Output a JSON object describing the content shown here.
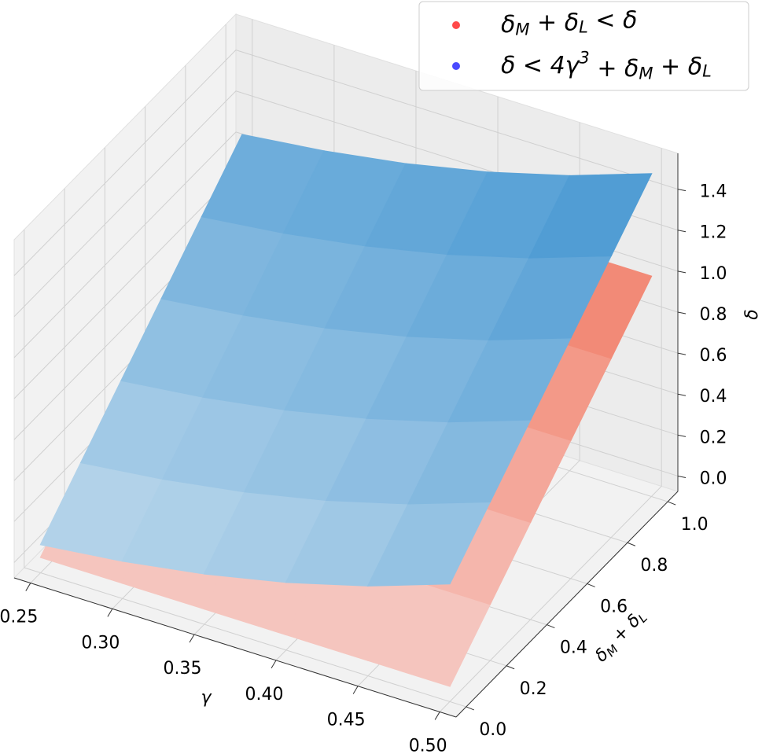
{
  "chart_data": {
    "type": "surface3d",
    "xlabel": "γ",
    "ylabel": "δ_M + δ_L",
    "zlabel": "δ",
    "x": [
      0.25,
      0.3,
      0.35,
      0.4,
      0.45,
      0.5
    ],
    "y": [
      0.0,
      0.2,
      0.4,
      0.6,
      0.8,
      1.0
    ],
    "series": [
      {
        "name": "δ_M + δ_L < δ",
        "color": "#ff2a2a",
        "cmap": "Reds",
        "values": [
          [
            0,
            0.2,
            0.4,
            0.6,
            0.8,
            1.0
          ],
          [
            0,
            0.2,
            0.4,
            0.6,
            0.8,
            1.0
          ],
          [
            0,
            0.2,
            0.4,
            0.6,
            0.8,
            1.0
          ],
          [
            0,
            0.2,
            0.4,
            0.6,
            0.8,
            1.0
          ],
          [
            0,
            0.2,
            0.4,
            0.6,
            0.8,
            1.0
          ],
          [
            0,
            0.2,
            0.4,
            0.6,
            0.8,
            1.0
          ]
        ]
      },
      {
        "name": "δ < 4γ^3 + δ_M + δ_L",
        "color": "#2a2aff",
        "cmap": "Blues",
        "values": [
          [
            0.0625,
            0.2625,
            0.4625,
            0.6625,
            0.8625,
            1.0625
          ],
          [
            0.108,
            0.308,
            0.508,
            0.708,
            0.908,
            1.108
          ],
          [
            0.1715,
            0.3715,
            0.5715,
            0.7715,
            0.9715,
            1.1715
          ],
          [
            0.256,
            0.456,
            0.656,
            0.856,
            1.056,
            1.256
          ],
          [
            0.3645,
            0.5645,
            0.7645,
            0.9645,
            1.1645,
            1.3645
          ],
          [
            0.5,
            0.7,
            0.9,
            1.1,
            1.3,
            1.5
          ]
        ]
      }
    ],
    "xlim": [
      0.24,
      0.51
    ],
    "ylim": [
      -0.05,
      1.05
    ],
    "zlim": [
      -0.075,
      1.575
    ],
    "xticks": [
      {
        "value": 0.25,
        "label": "0.25"
      },
      {
        "value": 0.3,
        "label": "0.30"
      },
      {
        "value": 0.35,
        "label": "0.35"
      },
      {
        "value": 0.4,
        "label": "0.40"
      },
      {
        "value": 0.45,
        "label": "0.45"
      },
      {
        "value": 0.5,
        "label": "0.50"
      }
    ],
    "yticks": [
      {
        "value": 0,
        "label": "0.0"
      },
      0.2,
      0.4,
      0.6,
      0.8,
      {
        "value": 1,
        "label": "1.0"
      }
    ],
    "zticks": [
      {
        "value": 0,
        "label": "0.0"
      },
      0.2,
      0.4,
      0.6,
      0.8,
      {
        "value": 1,
        "label": "1.0"
      },
      1.2,
      1.4
    ],
    "grid": true,
    "legend": "upper right"
  }
}
